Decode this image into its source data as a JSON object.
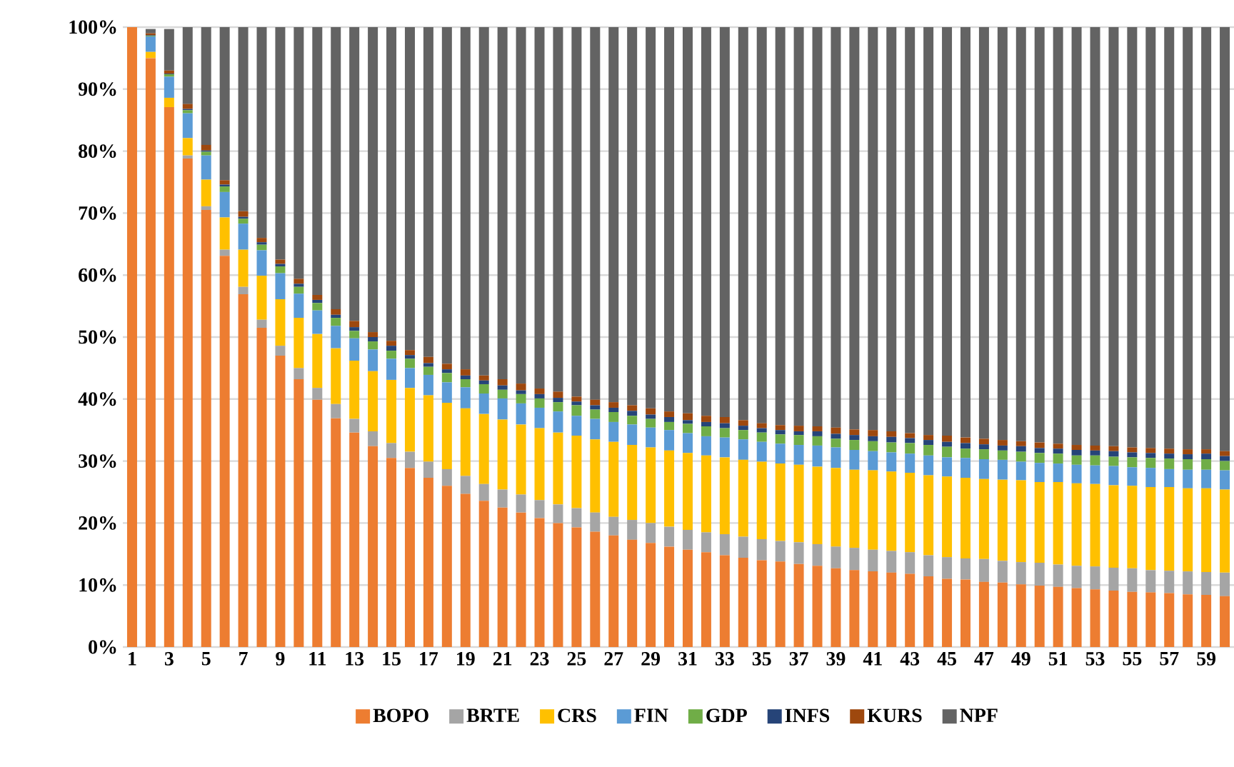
{
  "chart_data": {
    "type": "bar",
    "stacked": true,
    "grid": "y",
    "legend": "bottom",
    "categories": [
      "1",
      null,
      "3",
      null,
      "5",
      null,
      "7",
      null,
      "9",
      null,
      "11",
      null,
      "13",
      null,
      "15",
      null,
      "17",
      null,
      "19",
      null,
      "21",
      null,
      "23",
      null,
      "25",
      null,
      "27",
      null,
      "29",
      null,
      "31",
      null,
      "33",
      null,
      "35",
      null,
      "37",
      null,
      "39",
      null,
      "41",
      null,
      "43",
      null,
      "45",
      null,
      "47",
      null,
      "49",
      null,
      "51",
      null,
      "53",
      null,
      "55",
      null,
      "57",
      null,
      "59",
      null
    ],
    "ylim": [
      0,
      100
    ],
    "yticks": [
      {
        "value": 0,
        "label": "0%"
      },
      {
        "value": 10,
        "label": "10%"
      },
      {
        "value": 20,
        "label": "20%"
      },
      {
        "value": 30,
        "label": "30%"
      },
      {
        "value": 40,
        "label": "40%"
      },
      {
        "value": 50,
        "label": "50%"
      },
      {
        "value": 60,
        "label": "60%"
      },
      {
        "value": 70,
        "label": "70%"
      },
      {
        "value": 80,
        "label": "80%"
      },
      {
        "value": 90,
        "label": "90%"
      },
      {
        "value": 100,
        "label": "100%"
      }
    ],
    "series": [
      {
        "name": "BOPO",
        "color": "#ed7d31",
        "values": [
          100,
          95.0,
          87.1,
          78.8,
          70.5,
          63.1,
          56.9,
          51.5,
          47.0,
          43.2,
          39.9,
          36.9,
          34.6,
          32.4,
          30.5,
          28.9,
          27.3,
          26.0,
          24.7,
          23.6,
          22.5,
          21.7,
          20.8,
          20.0,
          19.3,
          18.6,
          18.0,
          17.3,
          16.8,
          16.2,
          15.7,
          15.3,
          14.8,
          14.4,
          14.0,
          13.8,
          13.4,
          13.1,
          12.7,
          12.4,
          12.2,
          12.0,
          11.8,
          11.4,
          11.0,
          10.9,
          10.5,
          10.4,
          10.1,
          9.9,
          9.7,
          9.5,
          9.3,
          9.1,
          8.9,
          8.8,
          8.7,
          8.5,
          8.4,
          8.2
        ]
      },
      {
        "name": "BRTE",
        "color": "#a5a5a5",
        "values": [
          0,
          null,
          null,
          0.5,
          0.6,
          1.0,
          1.2,
          1.3,
          1.6,
          1.8,
          1.9,
          2.3,
          2.2,
          2.4,
          2.4,
          2.6,
          2.6,
          2.7,
          2.9,
          2.7,
          2.9,
          2.9,
          2.9,
          3.0,
          3.1,
          3.1,
          3.0,
          3.2,
          3.2,
          3.2,
          3.2,
          3.2,
          3.4,
          3.4,
          3.4,
          3.3,
          3.5,
          3.5,
          3.5,
          3.6,
          3.5,
          3.5,
          3.5,
          3.4,
          3.5,
          3.4,
          3.7,
          3.5,
          3.6,
          3.7,
          3.6,
          3.6,
          3.7,
          3.7,
          3.8,
          3.6,
          3.6,
          3.7,
          3.7,
          3.8
        ]
      },
      {
        "name": "CRS",
        "color": "#ffc000",
        "values": [
          0,
          1.0,
          1.5,
          2.8,
          4.3,
          5.2,
          6.0,
          7.1,
          7.5,
          8.1,
          8.7,
          9.0,
          9.4,
          9.7,
          10.2,
          10.3,
          10.7,
          10.7,
          10.9,
          11.3,
          11.3,
          11.3,
          11.6,
          11.6,
          11.7,
          11.8,
          12.1,
          12.1,
          12.2,
          12.3,
          12.4,
          12.4,
          12.4,
          12.4,
          12.5,
          12.5,
          12.5,
          12.5,
          12.7,
          12.6,
          12.8,
          12.8,
          12.8,
          12.9,
          13.0,
          13.0,
          12.9,
          13.1,
          13.2,
          13.0,
          13.3,
          13.3,
          13.3,
          13.3,
          13.3,
          13.4,
          13.5,
          13.4,
          13.5,
          13.4
        ]
      },
      {
        "name": "FIN",
        "color": "#5b9bd5",
        "values": [
          0,
          2.5,
          3.4,
          4.0,
          3.9,
          4.1,
          4.2,
          4.1,
          4.2,
          3.9,
          3.8,
          3.6,
          3.6,
          3.5,
          3.4,
          3.2,
          3.3,
          3.3,
          3.4,
          3.3,
          3.4,
          3.4,
          3.3,
          3.4,
          3.2,
          3.3,
          3.2,
          3.3,
          3.2,
          3.3,
          3.2,
          3.1,
          3.2,
          3.3,
          3.2,
          3.2,
          3.2,
          3.4,
          3.3,
          3.2,
          3.1,
          3.1,
          3.1,
          3.2,
          3.1,
          3.2,
          3.2,
          3.2,
          3.0,
          3.1,
          3.0,
          3.0,
          3.0,
          3.1,
          3.0,
          3.1,
          2.9,
          3.0,
          3.0,
          3.1
        ]
      },
      {
        "name": "GDP",
        "color": "#70ad47",
        "values": [
          0,
          0.1,
          0.4,
          0.5,
          0.6,
          0.9,
          0.8,
          0.9,
          1.1,
          1.1,
          1.2,
          1.3,
          1.2,
          1.3,
          1.3,
          1.5,
          1.3,
          1.5,
          1.3,
          1.5,
          1.4,
          1.5,
          1.5,
          1.5,
          1.7,
          1.5,
          1.6,
          1.4,
          1.4,
          1.3,
          1.5,
          1.6,
          1.5,
          1.5,
          1.5,
          1.5,
          1.6,
          1.5,
          1.4,
          1.6,
          1.6,
          1.6,
          1.7,
          1.7,
          1.7,
          1.5,
          1.6,
          1.5,
          1.6,
          1.6,
          1.6,
          1.5,
          1.6,
          1.5,
          1.6,
          1.6,
          1.7,
          1.7,
          1.7,
          1.5
        ]
      },
      {
        "name": "INFS",
        "color": "#264478",
        "values": [
          0,
          0.1,
          0.1,
          0.2,
          0.2,
          0.3,
          0.3,
          0.4,
          0.4,
          0.5,
          0.5,
          0.5,
          0.6,
          0.7,
          0.8,
          0.6,
          0.6,
          0.6,
          0.6,
          0.6,
          0.7,
          0.6,
          0.7,
          0.7,
          0.6,
          0.7,
          0.7,
          0.8,
          0.7,
          0.8,
          0.6,
          0.7,
          0.8,
          0.7,
          0.7,
          0.7,
          0.6,
          0.8,
          0.8,
          0.8,
          0.8,
          0.9,
          0.8,
          0.8,
          0.8,
          0.9,
          0.8,
          0.8,
          0.9,
          0.8,
          0.8,
          0.9,
          0.8,
          0.9,
          0.8,
          0.8,
          0.8,
          0.8,
          0.9,
          0.8
        ]
      },
      {
        "name": "KURS",
        "color": "#9e480e",
        "values": [
          0,
          0.3,
          0.5,
          0.8,
          0.9,
          0.7,
          0.9,
          0.7,
          0.7,
          0.8,
          0.8,
          0.9,
          1.0,
          0.8,
          0.8,
          0.8,
          1.0,
          0.9,
          1.0,
          0.8,
          1.0,
          1.1,
          0.9,
          1.0,
          0.8,
          0.9,
          0.9,
          0.9,
          1.0,
          0.9,
          1.1,
          1.0,
          1.0,
          0.9,
          0.8,
          0.8,
          0.9,
          0.8,
          1.0,
          0.9,
          1.0,
          0.9,
          0.8,
          0.8,
          1.0,
          0.9,
          0.9,
          0.9,
          0.8,
          0.9,
          0.8,
          0.8,
          0.8,
          0.8,
          0.8,
          0.8,
          0.8,
          0.8,
          0.7,
          0.8
        ]
      },
      {
        "name": "NPF",
        "color": "#636363",
        "values": [
          0,
          0.7,
          6.7,
          12.4,
          19.0,
          24.7,
          29.7,
          34.0,
          37.5,
          40.6,
          43.2,
          45.5,
          47.4,
          49.2,
          50.6,
          52.1,
          53.2,
          54.3,
          55.2,
          56.2,
          56.8,
          57.5,
          58.3,
          58.8,
          59.6,
          60.1,
          60.5,
          61.0,
          61.5,
          62.0,
          62.3,
          62.7,
          62.9,
          63.4,
          63.9,
          64.2,
          64.3,
          64.4,
          64.6,
          64.9,
          65.0,
          65.2,
          65.5,
          65.8,
          65.9,
          66.2,
          66.4,
          66.6,
          66.8,
          67.0,
          67.2,
          67.4,
          67.5,
          67.6,
          67.8,
          67.9,
          68.0,
          68.1,
          68.1,
          68.4
        ]
      }
    ]
  }
}
